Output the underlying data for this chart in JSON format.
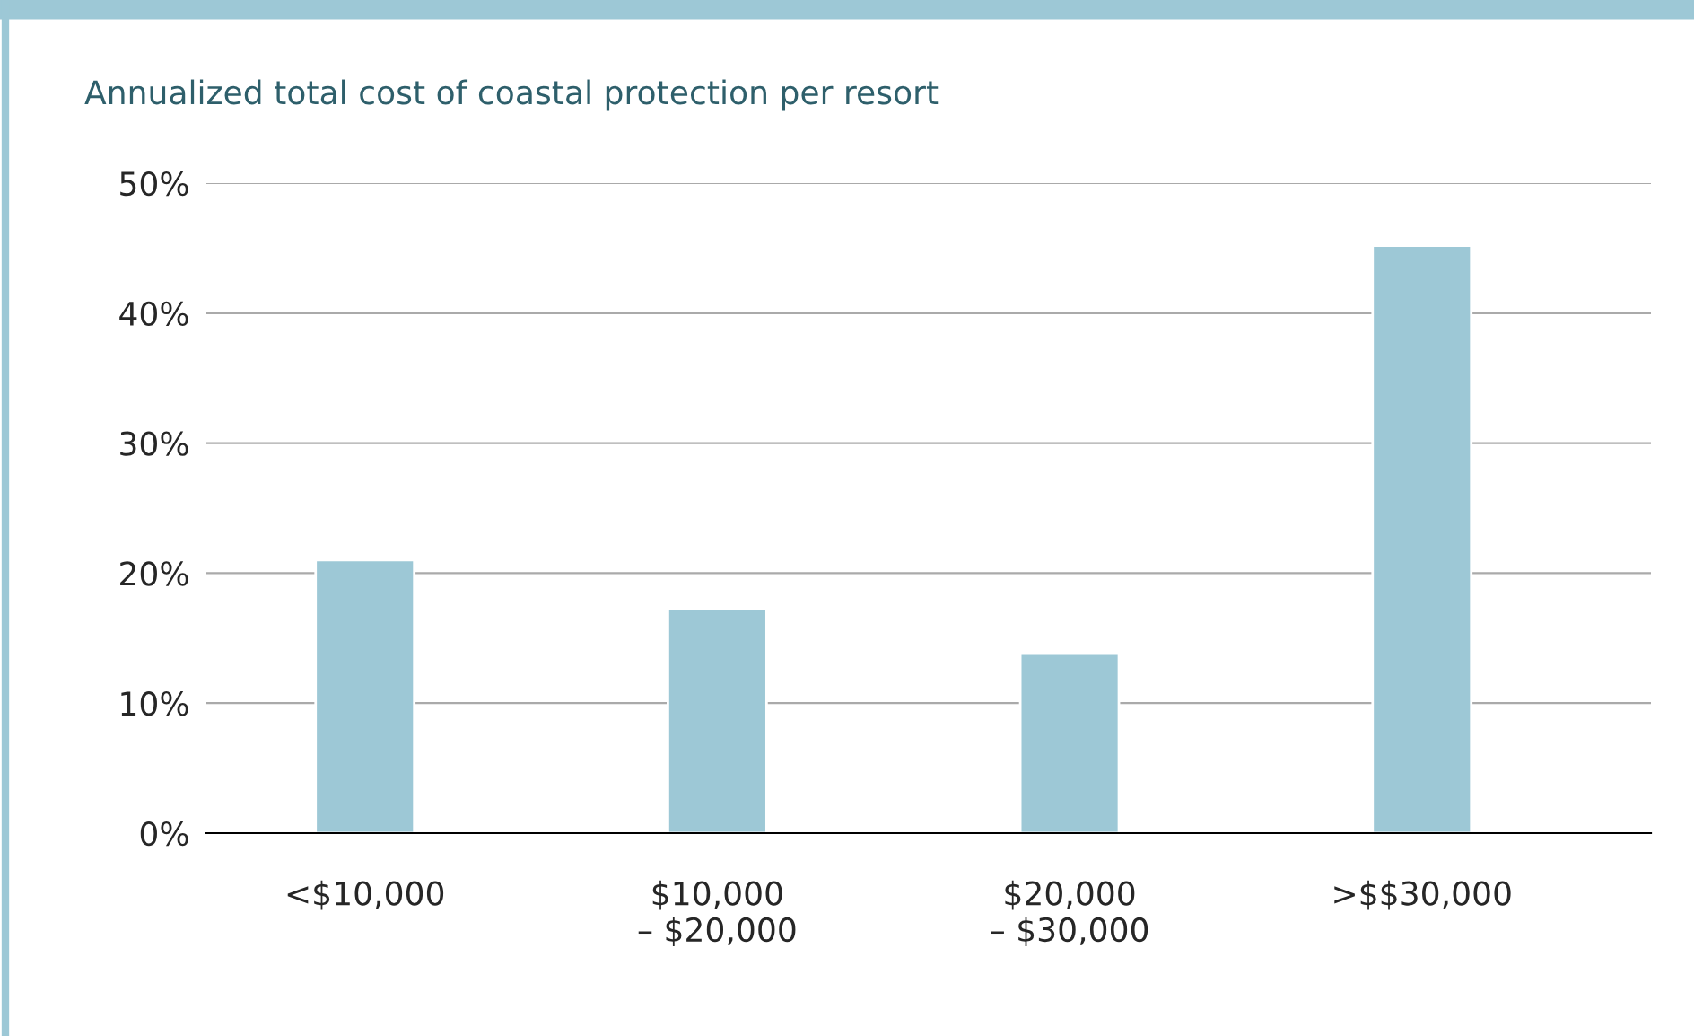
{
  "chart_data": {
    "type": "bar",
    "title": "Annualized total cost of coastal protection per resort",
    "categories": [
      "<$10,000",
      "$10,000\n– $20,000",
      "$20,000\n– $30,000",
      ">$$30,000"
    ],
    "values": [
      21,
      17.3,
      13.8,
      45.2
    ],
    "color": "#9dc8d6",
    "ylim": [
      0,
      50
    ],
    "yticks": [
      {
        "value": 0,
        "label": "0%"
      },
      {
        "value": 10,
        "label": "10%"
      },
      {
        "value": 20,
        "label": "20%"
      },
      {
        "value": 30,
        "label": "30%"
      },
      {
        "value": 40,
        "label": "40%"
      },
      {
        "value": 50,
        "label": "50%"
      }
    ],
    "grid": "y",
    "legend": false
  }
}
